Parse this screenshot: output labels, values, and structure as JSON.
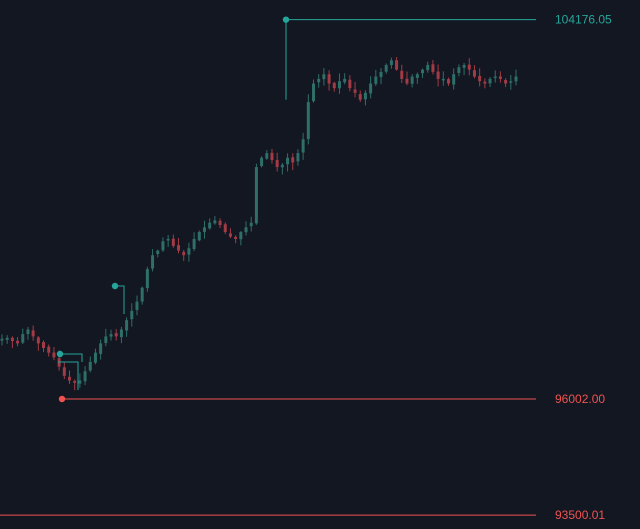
{
  "colors": {
    "background": "#131722",
    "up": "#26a69a",
    "down": "#ef5350",
    "up_candle": "#2f6f69",
    "down_candle": "#a23b45"
  },
  "chart_data": {
    "type": "candlestick",
    "title": "",
    "xlabel": "",
    "ylabel": "",
    "ylim": [
      93200,
      104600
    ],
    "grid": false,
    "levels": [
      {
        "label": "104176.05",
        "value": 104176.05,
        "role": "high",
        "color": "#26a69a"
      },
      {
        "label": "96002.00",
        "value": 96002.0,
        "role": "low",
        "color": "#ef5350"
      },
      {
        "label": "93500.01",
        "value": 93500.01,
        "role": "support",
        "color": "#ef5350"
      }
    ],
    "close_series": [
      97300,
      97320,
      97250,
      97200,
      97400,
      97500,
      97350,
      97200,
      97100,
      97000,
      96900,
      96700,
      96500,
      96400,
      96350,
      96400,
      96600,
      96800,
      97000,
      97200,
      97350,
      97400,
      97350,
      97500,
      97700,
      97900,
      98100,
      98400,
      98800,
      99100,
      99200,
      99400,
      99450,
      99300,
      99200,
      99100,
      99250,
      99450,
      99600,
      99700,
      99800,
      99850,
      99750,
      99600,
      99500,
      99450,
      99600,
      99700,
      99800,
      101000,
      101200,
      101300,
      101150,
      101000,
      101050,
      101200,
      101100,
      101300,
      101600,
      102400,
      102800,
      102900,
      103000,
      102800,
      102700,
      102850,
      102900,
      102700,
      102600,
      102450,
      102600,
      102800,
      102950,
      103050,
      103200,
      103300,
      103100,
      102900,
      102800,
      102950,
      103000,
      103100,
      103200,
      103050,
      102900,
      102900,
      102800,
      103000,
      103150,
      103200,
      103100,
      102950,
      102850,
      102800,
      102900,
      102950,
      102900,
      102800,
      102850,
      102950
    ],
    "markers": [
      {
        "index": 22,
        "side": "low"
      },
      {
        "index": 29,
        "side": "high"
      },
      {
        "index": 61,
        "side": "high"
      }
    ]
  },
  "axis_labels": {
    "high": "104176.05",
    "low": "96002.00",
    "support": "93500.01"
  }
}
